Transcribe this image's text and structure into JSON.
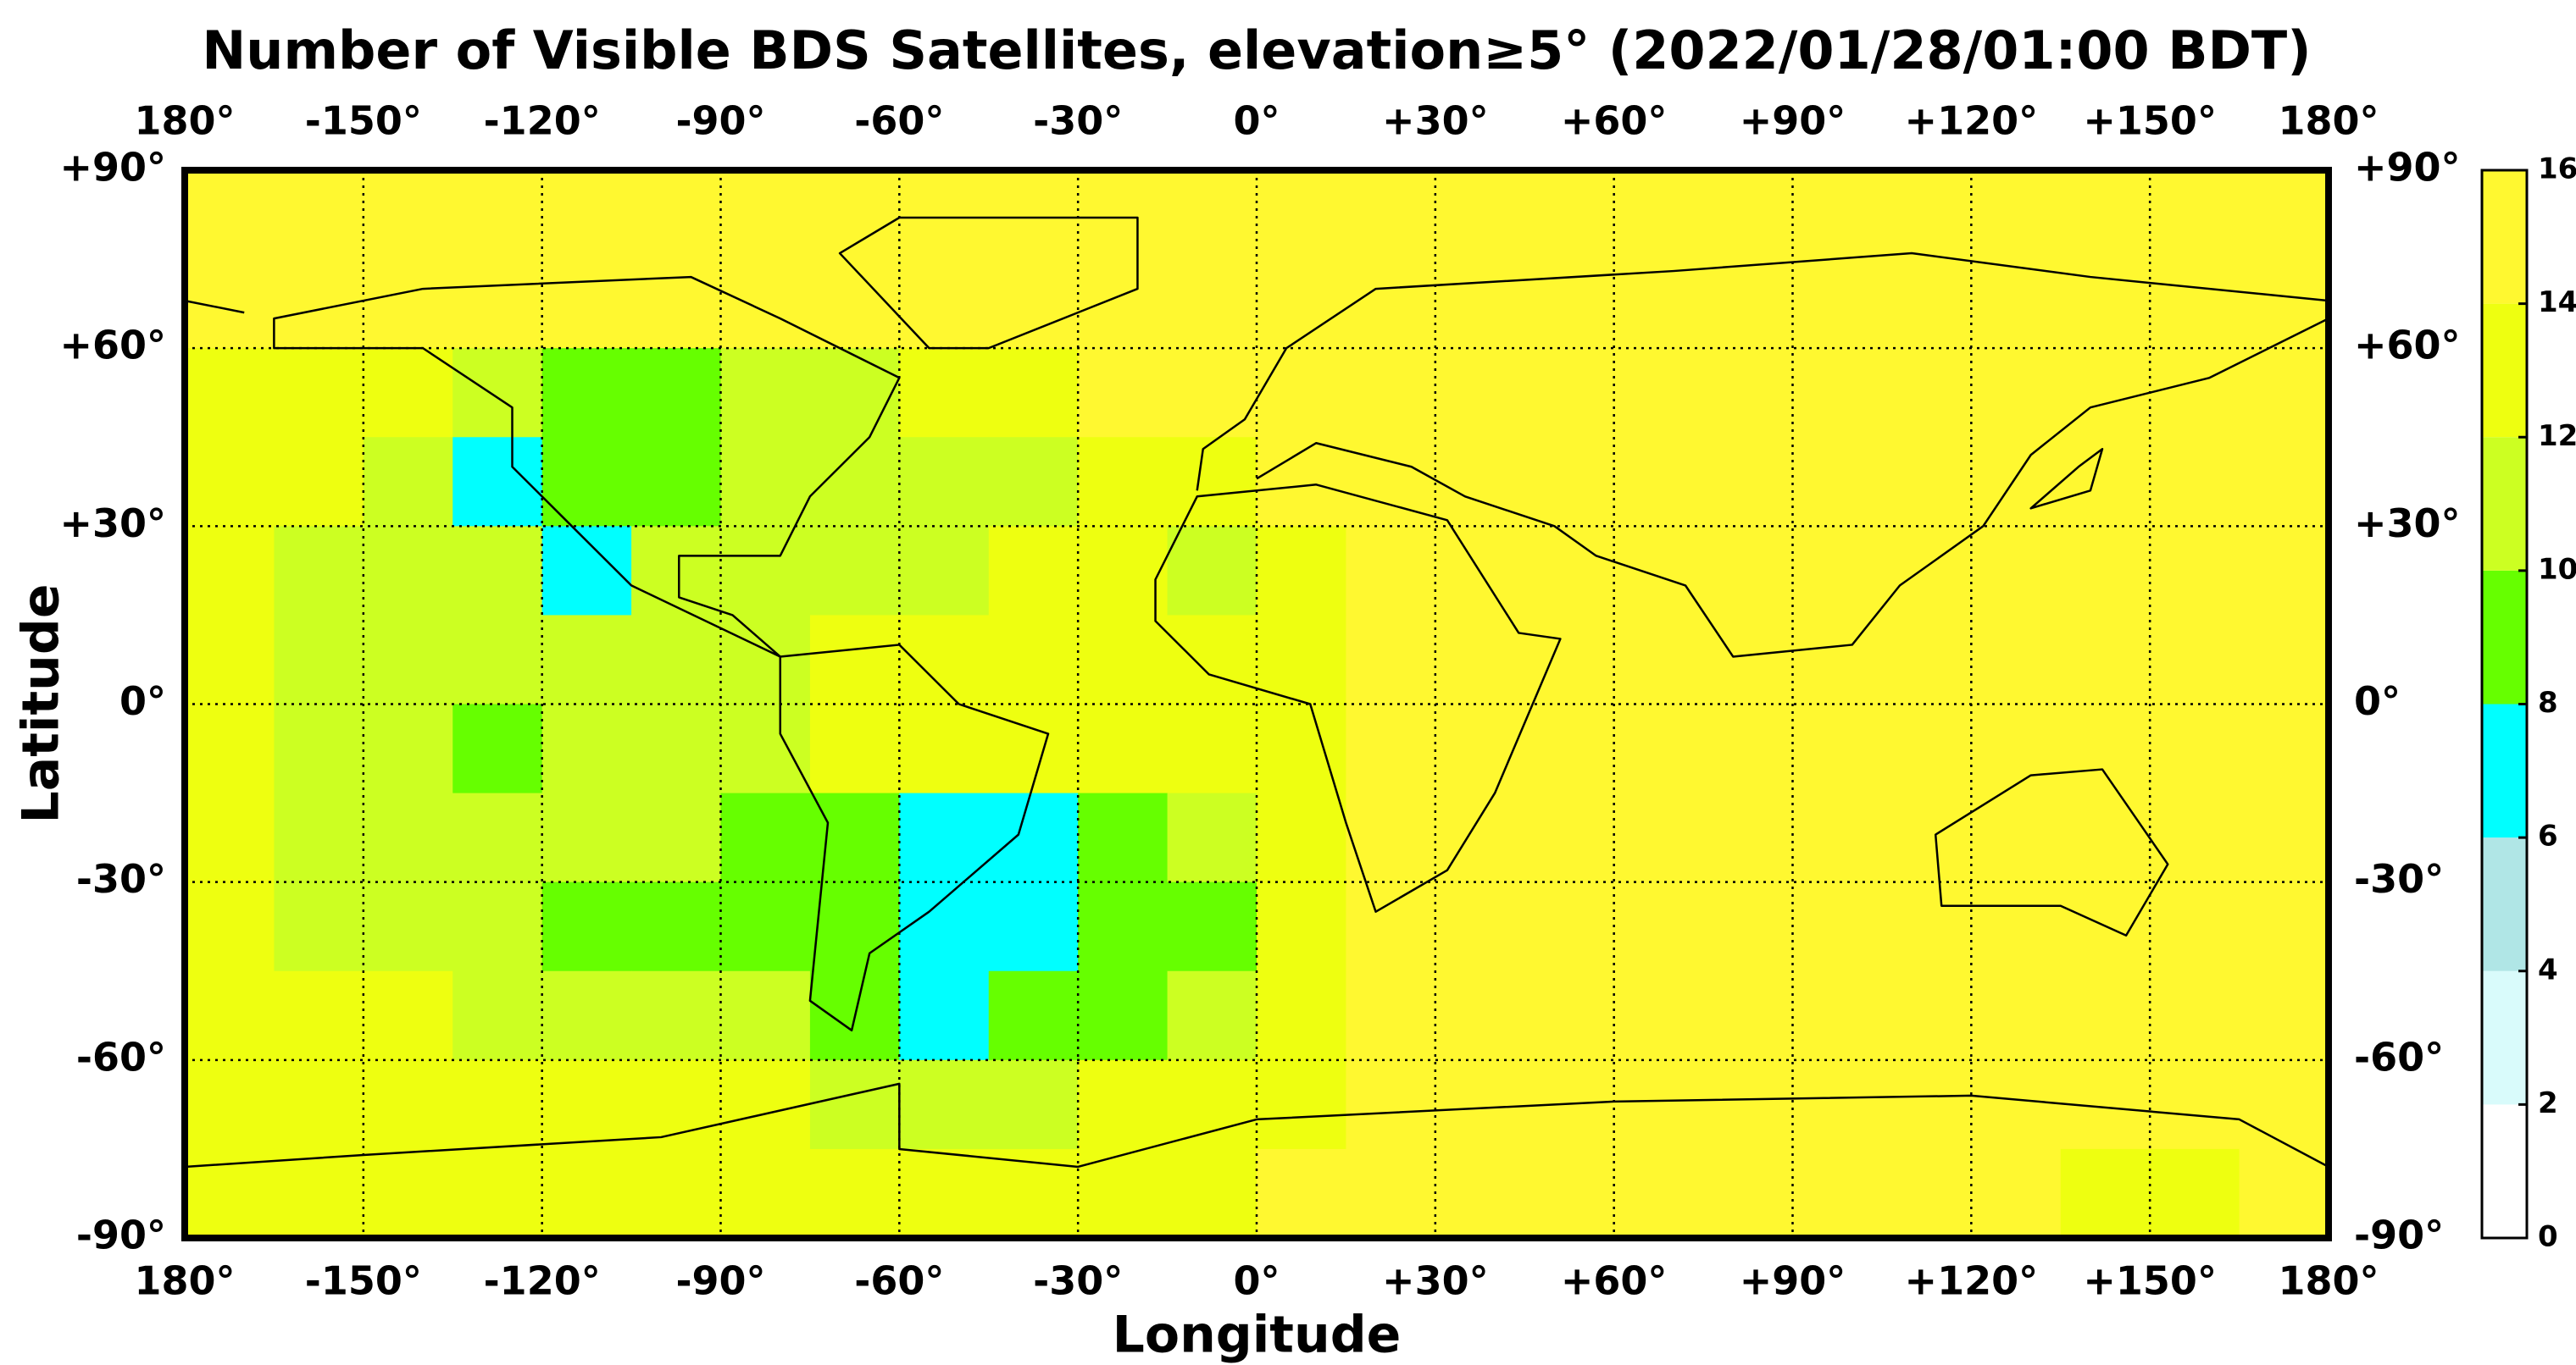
{
  "chart_data": {
    "type": "heatmap",
    "title": "Number of Visible BDS Satellites, elevation≥5° (2022/01/28/01:00 BDT)",
    "x_label": "Longitude",
    "y_label": "Latitude",
    "xlim": [
      -180,
      180
    ],
    "ylim": [
      -90,
      90
    ],
    "xticks": [
      {
        "value": -180,
        "label": "180°"
      },
      {
        "value": -150,
        "label": "-150°"
      },
      {
        "value": -120,
        "label": "-120°"
      },
      {
        "value": -90,
        "label": "-90°"
      },
      {
        "value": -60,
        "label": "-60°"
      },
      {
        "value": -30,
        "label": "-30°"
      },
      {
        "value": 0,
        "label": "0°"
      },
      {
        "value": 30,
        "label": "+30°"
      },
      {
        "value": 60,
        "label": "+60°"
      },
      {
        "value": 90,
        "label": "+90°"
      },
      {
        "value": 120,
        "label": "+120°"
      },
      {
        "value": 150,
        "label": "+150°"
      },
      {
        "value": 180,
        "label": "180°"
      }
    ],
    "yticks": [
      {
        "value": 90,
        "label": "+90°"
      },
      {
        "value": 60,
        "label": "+60°"
      },
      {
        "value": 30,
        "label": "+30°"
      },
      {
        "value": 0,
        "label": "0°"
      },
      {
        "value": -30,
        "label": "-30°"
      },
      {
        "value": -60,
        "label": "-60°"
      },
      {
        "value": -90,
        "label": "-90°"
      }
    ],
    "grid": true,
    "lon_edges": [
      -180,
      -165,
      -150,
      -135,
      -120,
      -105,
      -90,
      -75,
      -60,
      -45,
      -30,
      -15,
      0,
      15,
      30,
      45,
      60,
      75,
      90,
      105,
      120,
      135,
      150,
      165,
      180
    ],
    "lat_edges": [
      90,
      75,
      60,
      45,
      30,
      15,
      0,
      -15,
      -30,
      -45,
      -60,
      -75,
      -90
    ],
    "values": [
      [
        15,
        15,
        15,
        15,
        15,
        15,
        15,
        15,
        15,
        15,
        15,
        15,
        15,
        15,
        15,
        15,
        15,
        15,
        15,
        15,
        15,
        15,
        15,
        15
      ],
      [
        15,
        15,
        15,
        15,
        15,
        15,
        15,
        15,
        15,
        15,
        15,
        15,
        15,
        15,
        15,
        15,
        15,
        15,
        15,
        15,
        15,
        15,
        15,
        15
      ],
      [
        13,
        13,
        13,
        11,
        9,
        9,
        11,
        11,
        13,
        13,
        15,
        15,
        15,
        15,
        15,
        15,
        15,
        15,
        15,
        15,
        15,
        15,
        15,
        15
      ],
      [
        13,
        13,
        11,
        7,
        9,
        9,
        11,
        11,
        11,
        11,
        13,
        13,
        15,
        15,
        15,
        15,
        15,
        15,
        15,
        15,
        15,
        15,
        15,
        15
      ],
      [
        13,
        11,
        11,
        11,
        7,
        11,
        11,
        11,
        11,
        13,
        13,
        11,
        13,
        15,
        15,
        15,
        15,
        15,
        15,
        15,
        15,
        15,
        15,
        15
      ],
      [
        13,
        11,
        11,
        11,
        11,
        11,
        11,
        13,
        13,
        13,
        13,
        13,
        13,
        15,
        15,
        15,
        15,
        15,
        15,
        15,
        15,
        15,
        15,
        15
      ],
      [
        13,
        11,
        11,
        9,
        11,
        11,
        11,
        13,
        13,
        13,
        13,
        13,
        13,
        15,
        15,
        15,
        15,
        15,
        15,
        15,
        15,
        15,
        15,
        15
      ],
      [
        13,
        11,
        11,
        11,
        11,
        11,
        9,
        9,
        7,
        7,
        9,
        11,
        13,
        15,
        15,
        15,
        15,
        15,
        15,
        15,
        15,
        15,
        15,
        15
      ],
      [
        13,
        11,
        11,
        11,
        9,
        9,
        9,
        9,
        7,
        7,
        9,
        9,
        13,
        15,
        15,
        15,
        15,
        15,
        15,
        15,
        15,
        15,
        15,
        15
      ],
      [
        13,
        13,
        13,
        11,
        11,
        11,
        11,
        9,
        7,
        9,
        9,
        11,
        13,
        15,
        15,
        15,
        15,
        15,
        15,
        15,
        15,
        15,
        15,
        15
      ],
      [
        13,
        13,
        13,
        13,
        13,
        13,
        13,
        11,
        11,
        11,
        13,
        13,
        13,
        15,
        15,
        15,
        15,
        15,
        15,
        15,
        15,
        15,
        15,
        15
      ],
      [
        13,
        13,
        13,
        13,
        13,
        13,
        13,
        13,
        13,
        13,
        13,
        13,
        15,
        15,
        15,
        15,
        15,
        15,
        15,
        15,
        15,
        13,
        13,
        15
      ]
    ],
    "colorbar": {
      "ticks": [
        0,
        2,
        4,
        6,
        8,
        10,
        12,
        14,
        16
      ],
      "colors": [
        "#ffffff",
        "#d9fbfb",
        "#b0e6e6",
        "#00ffff",
        "#66ff00",
        "#ccff22",
        "#eeff10",
        "#fff830"
      ]
    }
  }
}
